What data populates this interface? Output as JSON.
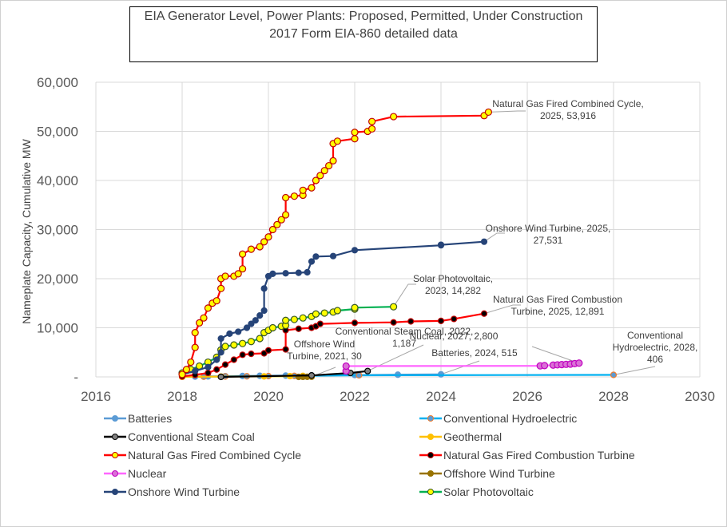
{
  "chart_data": {
    "type": "line",
    "title": "EIA Generator Level, Power Plants: Proposed, Permitted, Under Construction",
    "subtitle": "2017 Form EIA-860 detailed data",
    "xlabel": "",
    "ylabel": "Nameplate Capacity, Cumulative MW",
    "xlim": [
      2016,
      2030
    ],
    "ylim": [
      0,
      60000
    ],
    "x_ticks": [
      "2016",
      "2018",
      "2020",
      "2022",
      "2024",
      "2026",
      "2028",
      "2030"
    ],
    "y_ticks": [
      "-",
      "10,000",
      "20,000",
      "30,000",
      "40,000",
      "50,000",
      "60,000"
    ],
    "grid": true,
    "legend_position": "bottom",
    "series": [
      {
        "name": "Batteries",
        "line": "#5b9bd5",
        "marker": "#5b9bd5",
        "edge": "#5b9bd5",
        "x": [
          2018.0,
          2018.3,
          2018.6,
          2019.0,
          2019.4,
          2019.8,
          2020.4,
          2021.0,
          2022.0,
          2023.0,
          2024.0
        ],
        "y": [
          20,
          60,
          100,
          150,
          180,
          220,
          260,
          300,
          380,
          450,
          515
        ]
      },
      {
        "name": "Conventional Hydroelectric",
        "line": "#00b0f0",
        "marker": "#5b9bd5",
        "edge": "#ed7d31",
        "x": [
          2018.0,
          2018.5,
          2019.0,
          2019.5,
          2020.0,
          2020.6,
          2021.0,
          2022.1,
          2028.0
        ],
        "y": [
          10,
          40,
          80,
          120,
          160,
          200,
          250,
          320,
          406
        ]
      },
      {
        "name": "Conventional Steam Coal",
        "line": "#000000",
        "marker": "#808080",
        "edge": "#000000",
        "x": [
          2018.9,
          2021.0,
          2021.9,
          2022.3
        ],
        "y": [
          0,
          300,
          800,
          1187
        ]
      },
      {
        "name": "Geothermal",
        "line": "#ffc000",
        "marker": "#ffc000",
        "edge": "#ffc000",
        "x": [
          2018.0,
          2018.9,
          2019.9,
          2020.5,
          2020.8
        ],
        "y": [
          10,
          60,
          100,
          150,
          200
        ]
      },
      {
        "name": "Natural Gas Fired Combined Cycle",
        "line": "#ff0000",
        "marker": "#ffff00",
        "edge": "#c00000",
        "x": [
          2018.0,
          2018.1,
          2018.2,
          2018.3,
          2018.3,
          2018.4,
          2018.5,
          2018.6,
          2018.7,
          2018.8,
          2018.9,
          2018.9,
          2019.0,
          2019.2,
          2019.3,
          2019.4,
          2019.4,
          2019.6,
          2019.8,
          2019.9,
          2020.0,
          2020.1,
          2020.2,
          2020.3,
          2020.4,
          2020.4,
          2020.6,
          2020.8,
          2020.8,
          2021.0,
          2021.1,
          2021.2,
          2021.3,
          2021.4,
          2021.5,
          2021.5,
          2021.6,
          2022.0,
          2022.0,
          2022.3,
          2022.4,
          2022.4,
          2022.9,
          2025.0,
          2025.1
        ],
        "y": [
          500,
          1500,
          3000,
          6000,
          9000,
          11000,
          12000,
          14000,
          15000,
          15500,
          18000,
          20000,
          20500,
          20500,
          21000,
          22000,
          25000,
          26000,
          26500,
          27500,
          28500,
          30000,
          31000,
          32000,
          33000,
          36500,
          36800,
          37000,
          38000,
          38500,
          40000,
          41000,
          42000,
          43000,
          44000,
          47500,
          48000,
          48500,
          49800,
          50000,
          50500,
          52000,
          53000,
          53200,
          53916
        ]
      },
      {
        "name": "Natural Gas Fired Combustion Turbine",
        "line": "#ff0000",
        "marker": "#000000",
        "edge": "#c00000",
        "x": [
          2018.0,
          2018.3,
          2018.6,
          2018.8,
          2019.0,
          2019.2,
          2019.4,
          2019.6,
          2019.9,
          2020.0,
          2020.4,
          2020.4,
          2020.7,
          2021.0,
          2021.1,
          2021.2,
          2022.0,
          2022.9,
          2023.3,
          2024.0,
          2024.3,
          2025.0
        ],
        "y": [
          100,
          400,
          800,
          1500,
          2500,
          3500,
          4500,
          4700,
          4800,
          5400,
          5600,
          9500,
          9800,
          10000,
          10300,
          10800,
          11000,
          11100,
          11300,
          11400,
          11800,
          12891
        ]
      },
      {
        "name": "Nuclear",
        "line": "#ff66ff",
        "marker": "#da70d6",
        "edge": "#c000c0",
        "x": [
          2021.8,
          2021.8,
          2026.3,
          2026.4,
          2026.6,
          2026.7,
          2026.8,
          2026.9,
          2027.0,
          2027.1,
          2027.2
        ],
        "y": [
          1200,
          2200,
          2250,
          2300,
          2400,
          2450,
          2500,
          2550,
          2600,
          2700,
          2800
        ]
      },
      {
        "name": "Offshore Wind Turbine",
        "line": "#997300",
        "marker": "#997300",
        "edge": "#997300",
        "x": [
          2020.7,
          2020.8,
          2020.9,
          2021.0
        ],
        "y": [
          5,
          10,
          20,
          30
        ]
      },
      {
        "name": "Onshore Wind Turbine",
        "line": "#264478",
        "marker": "#264478",
        "edge": "#264478",
        "x": [
          2018.0,
          2018.3,
          2018.6,
          2018.8,
          2018.9,
          2018.9,
          2019.1,
          2019.3,
          2019.5,
          2019.6,
          2019.7,
          2019.8,
          2019.9,
          2019.9,
          2020.0,
          2020.1,
          2020.4,
          2020.7,
          2020.9,
          2021.0,
          2021.1,
          2021.5,
          2022.0,
          2024.0,
          2024.0,
          2025.0
        ],
        "y": [
          500,
          1200,
          2000,
          3500,
          5000,
          7800,
          8800,
          9200,
          10000,
          10800,
          11500,
          12500,
          13500,
          18000,
          20500,
          21000,
          21100,
          21200,
          21300,
          23500,
          24500,
          24600,
          25800,
          26800,
          26900,
          27531
        ]
      },
      {
        "name": "Solar Photovoltaic",
        "line": "#00b050",
        "marker": "#ffff00",
        "edge": "#385723",
        "x": [
          2018.0,
          2018.2,
          2018.4,
          2018.6,
          2018.8,
          2018.9,
          2019.0,
          2019.2,
          2019.4,
          2019.6,
          2019.8,
          2019.9,
          2020.0,
          2020.1,
          2020.3,
          2020.4,
          2020.4,
          2020.6,
          2020.8,
          2021.0,
          2021.1,
          2021.3,
          2021.5,
          2021.6,
          2022.0,
          2022.0,
          2022.9
        ],
        "y": [
          800,
          1500,
          2200,
          3000,
          4000,
          5500,
          6200,
          6500,
          6800,
          7200,
          7800,
          9000,
          9500,
          10000,
          10300,
          10500,
          11500,
          11700,
          12000,
          12300,
          12800,
          13000,
          13200,
          13500,
          13800,
          14100,
          14282
        ]
      }
    ],
    "annotations": [
      {
        "series": "Natural Gas Fired Combined Cycle",
        "lines": [
          "Natural Gas Fired Combined Cycle,",
          "2025,  53,916"
        ]
      },
      {
        "series": "Onshore Wind Turbine",
        "lines": [
          "Onshore Wind Turbine, 2025,",
          "27,531"
        ]
      },
      {
        "series": "Solar Photovoltaic",
        "lines": [
          "Solar Photovoltaic,",
          "2023,  14,282"
        ]
      },
      {
        "series": "Natural Gas Fired Combustion Turbine",
        "lines": [
          "Natural Gas Fired Combustion",
          "Turbine, 2025,  12,891"
        ]
      },
      {
        "series": "Conventional Steam Coal",
        "lines": [
          "Conventional Steam Coal, 2022,",
          "1,187"
        ]
      },
      {
        "series": "Offshore Wind Turbine",
        "lines": [
          "Offshore Wind",
          "Turbine, 2021,  30"
        ]
      },
      {
        "series": "Nuclear",
        "lines": [
          "Nuclear, 2027,  2,800"
        ]
      },
      {
        "series": "Batteries",
        "lines": [
          "Batteries, 2024,  515"
        ]
      },
      {
        "series": "Conventional Hydroelectric",
        "lines": [
          "Conventional",
          "Hydroelectric, 2028,",
          "406"
        ]
      }
    ]
  }
}
